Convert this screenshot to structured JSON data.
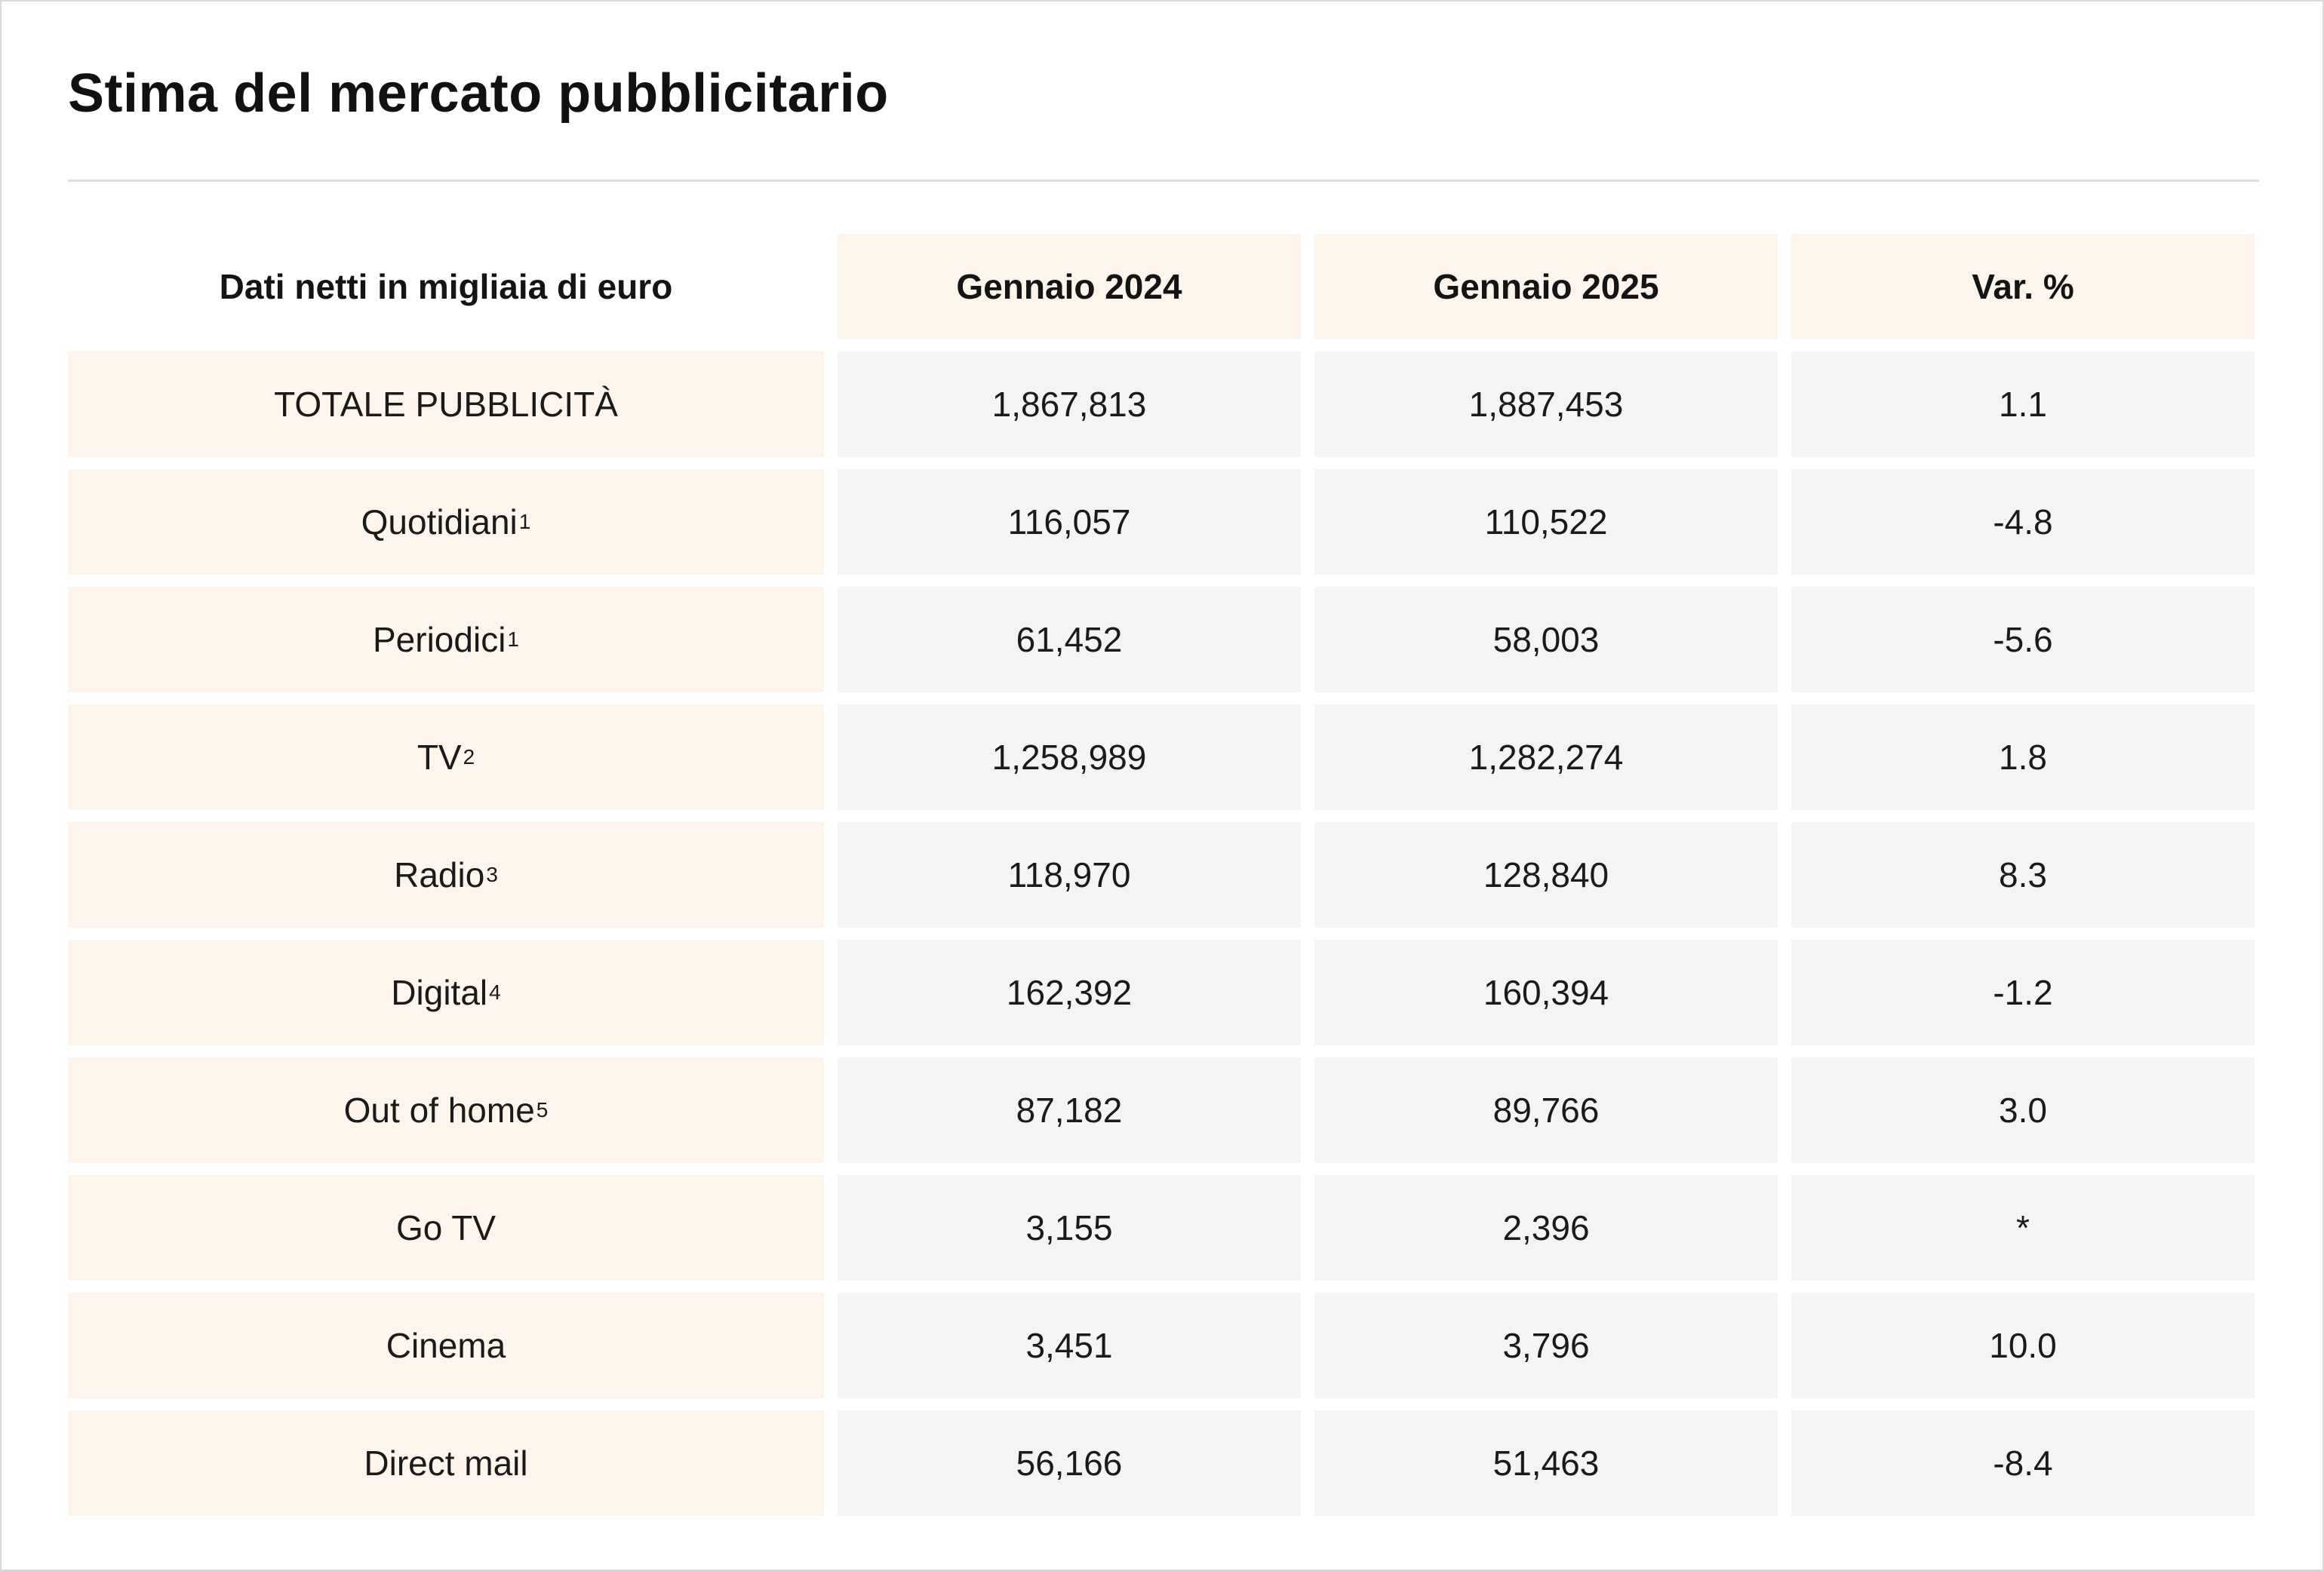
{
  "title": "Stima del mercato pubblicitario",
  "table": {
    "header": {
      "label": "Dati netti in migliaia di euro",
      "col1": "Gennaio 2024",
      "col2": "Gennaio 2025",
      "col3": "Var. %"
    },
    "rows": [
      {
        "label": "TOTALE PUBBLICITÀ",
        "note": "",
        "jan2024": "1,867,813",
        "jan2025": "1,887,453",
        "var": "1.1"
      },
      {
        "label": "Quotidiani",
        "note": "1",
        "jan2024": "116,057",
        "jan2025": "110,522",
        "var": "-4.8"
      },
      {
        "label": "Periodici",
        "note": "1",
        "jan2024": "61,452",
        "jan2025": "58,003",
        "var": "-5.6"
      },
      {
        "label": "TV",
        "note": "2",
        "jan2024": "1,258,989",
        "jan2025": "1,282,274",
        "var": "1.8"
      },
      {
        "label": "Radio",
        "note": "3",
        "jan2024": "118,970",
        "jan2025": "128,840",
        "var": "8.3"
      },
      {
        "label": "Digital",
        "note": "4",
        "jan2024": "162,392",
        "jan2025": "160,394",
        "var": "-1.2"
      },
      {
        "label": "Out of home",
        "note": "5",
        "jan2024": "87,182",
        "jan2025": "89,766",
        "var": "3.0"
      },
      {
        "label": "Go TV",
        "note": "",
        "jan2024": "3,155",
        "jan2025": "2,396",
        "var": "*"
      },
      {
        "label": "Cinema",
        "note": "",
        "jan2024": "3,451",
        "jan2025": "3,796",
        "var": "10.0"
      },
      {
        "label": "Direct mail",
        "note": "",
        "jan2024": "56,166",
        "jan2025": "51,463",
        "var": "-8.4"
      }
    ]
  }
}
